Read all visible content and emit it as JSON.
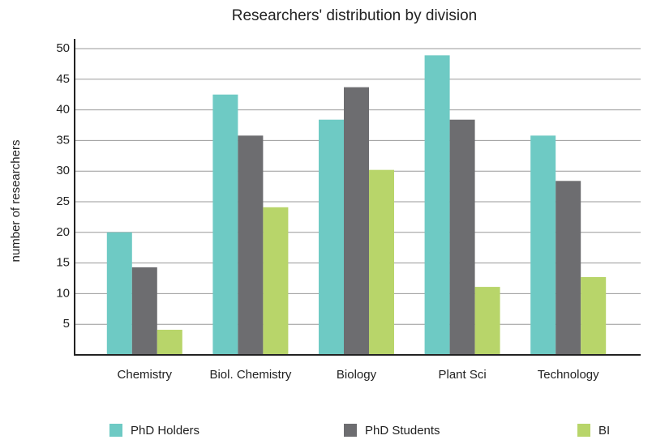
{
  "chart_data": {
    "type": "bar",
    "title": "Researchers' distribution by division",
    "y_label": "number of researchers",
    "categories": [
      "Chemistry",
      "Biol. Chemistry",
      "Biology",
      "Plant Sci",
      "Technology"
    ],
    "series": [
      {
        "name": "PhD Holders",
        "color": "#6ecac4",
        "values": [
          20,
          42.5,
          38.4,
          48.9,
          35.8
        ]
      },
      {
        "name": "PhD Students",
        "color": "#6d6d70",
        "values": [
          14.3,
          35.8,
          43.7,
          38.4,
          28.4
        ]
      },
      {
        "name": "BI",
        "color": "#b8d56a",
        "values": [
          4.1,
          24.1,
          30.2,
          11.1,
          12.7
        ]
      }
    ],
    "ylim": [
      0,
      50
    ],
    "yticks": [
      5,
      10,
      15,
      20,
      25,
      30,
      35,
      40,
      45,
      50
    ],
    "grid": true
  }
}
